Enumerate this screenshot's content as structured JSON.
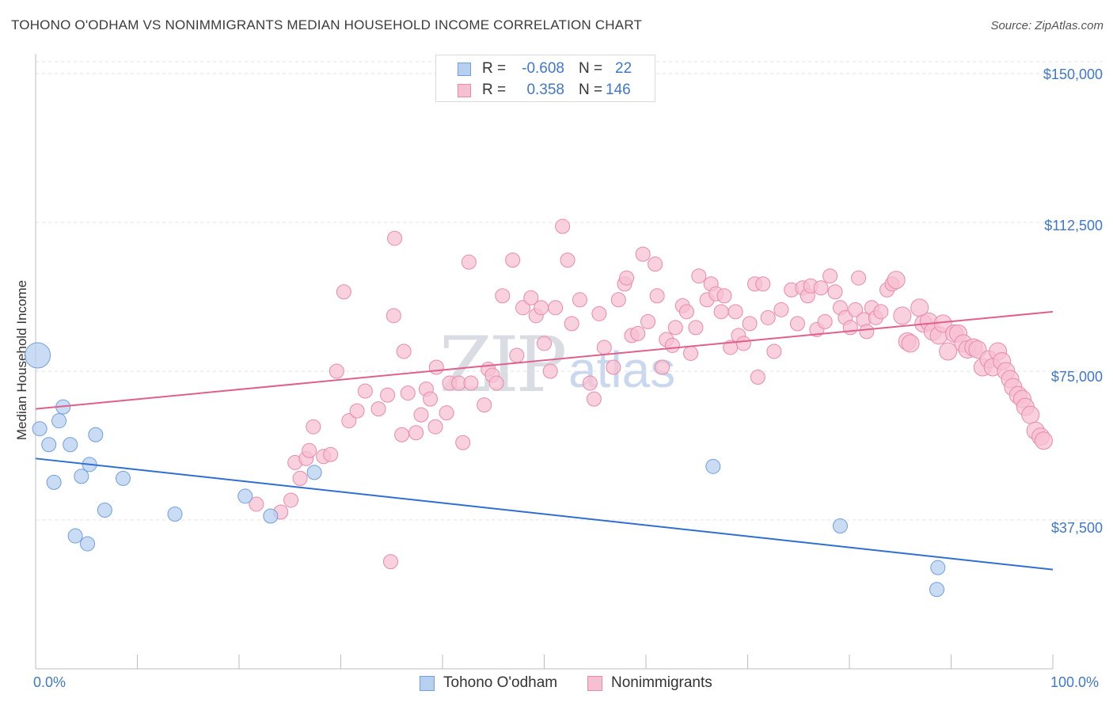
{
  "title": "TOHONO O'ODHAM VS NONIMMIGRANTS MEDIAN HOUSEHOLD INCOME CORRELATION CHART",
  "source": "Source: ZipAtlas.com",
  "watermark": {
    "zip": "ZIP",
    "atlas": "atlas"
  },
  "colors": {
    "blue_fill": "#b8d0f0",
    "blue_stroke": "#6f9fdc",
    "blue_line": "#2e6fd0",
    "pink_fill": "#f7c0d2",
    "pink_stroke": "#e88aa8",
    "pink_line": "#e0608c",
    "grid": "#e2e2e2",
    "axis_text": "#3f78c8"
  },
  "legend_top": [
    {
      "r_label": "R =",
      "r_value": "-0.608",
      "n_label": "N =",
      "n_value": "22"
    },
    {
      "r_label": "R =",
      "r_value": "0.358",
      "n_label": "N =",
      "n_value": "146"
    }
  ],
  "chart_data": {
    "type": "scatter",
    "title": "TOHONO O'ODHAM VS NONIMMIGRANTS MEDIAN HOUSEHOLD INCOME CORRELATION CHART",
    "xlabel": "",
    "ylabel": "Median Household Income",
    "xlim": [
      0,
      100
    ],
    "ylim": [
      0,
      153000
    ],
    "x_tick_labels": [
      "0.0%",
      "100.0%"
    ],
    "y_ticks": [
      37500,
      75000,
      112500,
      150000
    ],
    "y_tick_labels": [
      "$37,500",
      "$75,000",
      "$112,500",
      "$150,000"
    ],
    "grid": true,
    "legend_position": "bottom",
    "series": [
      {
        "name": "Tohono O'odham",
        "color": "#b8d0f0",
        "trend": [
          [
            0,
            53000
          ],
          [
            100,
            25000
          ]
        ],
        "points": [
          [
            0.2,
            79000,
            16
          ],
          [
            0.4,
            60500,
            9
          ],
          [
            1.3,
            56500,
            9
          ],
          [
            1.8,
            47000,
            9
          ],
          [
            2.3,
            62500,
            9
          ],
          [
            2.7,
            66000,
            9
          ],
          [
            3.4,
            56500,
            9
          ],
          [
            3.9,
            33500,
            9
          ],
          [
            4.5,
            48500,
            9
          ],
          [
            5.1,
            31500,
            9
          ],
          [
            5.3,
            51500,
            9
          ],
          [
            5.9,
            59000,
            9
          ],
          [
            6.8,
            40000,
            9
          ],
          [
            8.6,
            48000,
            9
          ],
          [
            13.7,
            39000,
            9
          ],
          [
            20.6,
            43500,
            9
          ],
          [
            23.1,
            38500,
            9
          ],
          [
            27.4,
            49500,
            9
          ],
          [
            66.6,
            51000,
            9
          ],
          [
            79.1,
            36000,
            9
          ],
          [
            88.7,
            25500,
            9
          ],
          [
            88.6,
            20000,
            9
          ]
        ]
      },
      {
        "name": "Nonimmigrants",
        "color": "#f7c0d2",
        "trend": [
          [
            0,
            65500
          ],
          [
            100,
            90000
          ]
        ],
        "points": [
          [
            21.7,
            41500,
            9
          ],
          [
            24.1,
            39500,
            9
          ],
          [
            25.1,
            42500,
            9
          ],
          [
            25.5,
            52000,
            9
          ],
          [
            26.0,
            48000,
            9
          ],
          [
            26.6,
            53000,
            9
          ],
          [
            26.9,
            55000,
            9
          ],
          [
            27.3,
            61000,
            9
          ],
          [
            28.3,
            53500,
            9
          ],
          [
            29.0,
            54000,
            9
          ],
          [
            29.6,
            75000,
            9
          ],
          [
            30.3,
            95000,
            9
          ],
          [
            30.8,
            62500,
            9
          ],
          [
            31.6,
            65000,
            9
          ],
          [
            32.4,
            70000,
            9
          ],
          [
            33.7,
            65500,
            9
          ],
          [
            34.6,
            69000,
            9
          ],
          [
            34.9,
            27000,
            9
          ],
          [
            35.3,
            108500,
            9
          ],
          [
            35.2,
            89000,
            9
          ],
          [
            36.0,
            59000,
            9
          ],
          [
            36.2,
            80000,
            9
          ],
          [
            36.6,
            69500,
            9
          ],
          [
            37.4,
            59500,
            9
          ],
          [
            37.9,
            64000,
            9
          ],
          [
            38.4,
            70500,
            9
          ],
          [
            38.8,
            68000,
            9
          ],
          [
            39.3,
            61000,
            9
          ],
          [
            39.4,
            76000,
            9
          ],
          [
            40.4,
            64500,
            9
          ],
          [
            40.7,
            72000,
            9
          ],
          [
            41.6,
            72000,
            9
          ],
          [
            42.0,
            57000,
            9
          ],
          [
            42.6,
            102500,
            9
          ],
          [
            42.8,
            72000,
            9
          ],
          [
            44.1,
            66500,
            9
          ],
          [
            44.5,
            75500,
            9
          ],
          [
            44.9,
            74000,
            9
          ],
          [
            45.3,
            72000,
            9
          ],
          [
            45.9,
            94000,
            9
          ],
          [
            46.9,
            103000,
            9
          ],
          [
            47.3,
            79000,
            9
          ],
          [
            47.9,
            91000,
            9
          ],
          [
            48.7,
            93500,
            9
          ],
          [
            49.2,
            89000,
            9
          ],
          [
            49.7,
            91000,
            9
          ],
          [
            50.0,
            82000,
            9
          ],
          [
            50.6,
            75000,
            9
          ],
          [
            51.1,
            91000,
            9
          ],
          [
            51.8,
            111500,
            9
          ],
          [
            52.3,
            103000,
            9
          ],
          [
            52.7,
            87000,
            9
          ],
          [
            53.5,
            93000,
            9
          ],
          [
            54.5,
            72000,
            9
          ],
          [
            54.9,
            68000,
            9
          ],
          [
            55.4,
            89500,
            9
          ],
          [
            55.9,
            81000,
            9
          ],
          [
            56.8,
            76000,
            9
          ],
          [
            57.3,
            93000,
            9
          ],
          [
            57.9,
            97000,
            9
          ],
          [
            58.1,
            98500,
            9
          ],
          [
            58.6,
            84000,
            9
          ],
          [
            59.2,
            84500,
            9
          ],
          [
            59.7,
            104500,
            9
          ],
          [
            60.2,
            87500,
            9
          ],
          [
            60.9,
            102000,
            9
          ],
          [
            61.1,
            94000,
            9
          ],
          [
            61.6,
            76000,
            9
          ],
          [
            62.0,
            83000,
            9
          ],
          [
            62.6,
            81500,
            9
          ],
          [
            62.9,
            86000,
            9
          ],
          [
            63.6,
            91500,
            9
          ],
          [
            64.0,
            90000,
            9
          ],
          [
            64.4,
            79500,
            9
          ],
          [
            64.9,
            86000,
            9
          ],
          [
            65.2,
            99000,
            9
          ],
          [
            66.0,
            93000,
            9
          ],
          [
            66.4,
            97000,
            9
          ],
          [
            66.9,
            94500,
            9
          ],
          [
            67.4,
            90000,
            9
          ],
          [
            67.7,
            94000,
            9
          ],
          [
            68.3,
            81000,
            9
          ],
          [
            68.8,
            90000,
            9
          ],
          [
            69.1,
            84000,
            9
          ],
          [
            69.6,
            82000,
            9
          ],
          [
            70.2,
            87000,
            9
          ],
          [
            70.7,
            97000,
            9
          ],
          [
            71.0,
            73500,
            9
          ],
          [
            71.5,
            97000,
            9
          ],
          [
            72.0,
            88500,
            9
          ],
          [
            72.6,
            80000,
            9
          ],
          [
            73.3,
            90500,
            9
          ],
          [
            74.3,
            95500,
            9
          ],
          [
            74.9,
            87000,
            9
          ],
          [
            75.4,
            96000,
            9
          ],
          [
            75.9,
            94000,
            9
          ],
          [
            76.2,
            96500,
            9
          ],
          [
            76.8,
            85500,
            9
          ],
          [
            77.2,
            96000,
            9
          ],
          [
            77.6,
            87500,
            9
          ],
          [
            78.1,
            99000,
            9
          ],
          [
            78.6,
            95000,
            9
          ],
          [
            79.1,
            91000,
            9
          ],
          [
            79.6,
            88500,
            9
          ],
          [
            80.1,
            86000,
            9
          ],
          [
            80.6,
            90500,
            9
          ],
          [
            80.9,
            98500,
            9
          ],
          [
            81.4,
            88000,
            9
          ],
          [
            81.7,
            85000,
            9
          ],
          [
            82.2,
            91000,
            9
          ],
          [
            82.6,
            88500,
            9
          ],
          [
            83.1,
            90000,
            9
          ],
          [
            83.7,
            95500,
            9
          ],
          [
            84.2,
            97000,
            9
          ],
          [
            84.6,
            98000,
            11
          ],
          [
            85.2,
            89000,
            11
          ],
          [
            85.7,
            82500,
            11
          ],
          [
            86.0,
            82000,
            11
          ],
          [
            86.9,
            91000,
            11
          ],
          [
            87.3,
            87000,
            11
          ],
          [
            87.8,
            87500,
            11
          ],
          [
            88.2,
            85000,
            11
          ],
          [
            88.8,
            84000,
            11
          ],
          [
            89.2,
            87000,
            11
          ],
          [
            89.7,
            80000,
            11
          ],
          [
            90.3,
            84500,
            11
          ],
          [
            90.7,
            84500,
            11
          ],
          [
            91.2,
            82000,
            11
          ],
          [
            91.6,
            80500,
            11
          ],
          [
            92.2,
            81000,
            11
          ],
          [
            92.6,
            80500,
            11
          ],
          [
            93.1,
            76000,
            11
          ],
          [
            93.7,
            78000,
            11
          ],
          [
            94.1,
            76000,
            11
          ],
          [
            94.6,
            80000,
            11
          ],
          [
            95.0,
            77500,
            11
          ],
          [
            95.4,
            75000,
            11
          ],
          [
            95.8,
            73000,
            11
          ],
          [
            96.1,
            71000,
            11
          ],
          [
            96.6,
            69000,
            11
          ],
          [
            97.0,
            68000,
            11
          ],
          [
            97.3,
            66000,
            11
          ],
          [
            97.8,
            64000,
            11
          ],
          [
            98.3,
            60000,
            11
          ],
          [
            98.8,
            58500,
            11
          ],
          [
            99.1,
            57500,
            11
          ]
        ]
      }
    ]
  }
}
